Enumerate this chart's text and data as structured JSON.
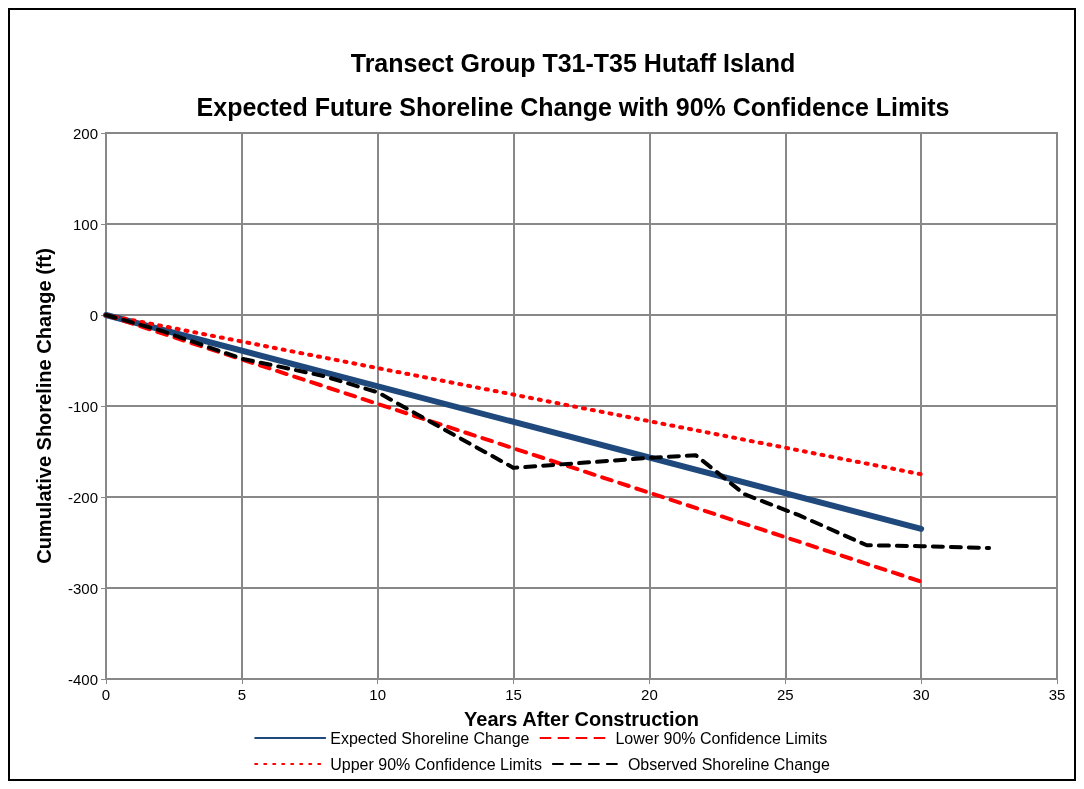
{
  "chart_data": {
    "type": "line",
    "title": "Transect Group T31-T35 Hutaff Island\nExpected Future Shoreline Change with 90% Confidence Limits",
    "xlabel": "Years After Construction",
    "ylabel": "Cumulative Shoreline Change (ft)",
    "xlim": [
      0,
      35
    ],
    "xticks": [
      0,
      5,
      10,
      15,
      20,
      25,
      30,
      35
    ],
    "ylim": [
      -400,
      200
    ],
    "yticks": [
      -400,
      -300,
      -200,
      -100,
      0,
      100,
      200
    ],
    "grid": true,
    "legend": "bottom",
    "marker": "none",
    "series": [
      {
        "name": "Expected Shoreline Change",
        "color": "#1f497d",
        "line_style": "solid",
        "x": [
          0,
          30
        ],
        "values": [
          0,
          -235
        ]
      },
      {
        "name": "Lower 90% Confidence Limits",
        "color": "#ff0000",
        "line_style": "dashed",
        "x": [
          0,
          30
        ],
        "values": [
          0,
          -293
        ]
      },
      {
        "name": "Upper 90% Confidence Limits",
        "color": "#ff0000",
        "line_style": "dotted",
        "x": [
          0,
          30
        ],
        "values": [
          0,
          -175
        ]
      },
      {
        "name": "Observed Shoreline Change",
        "color": "#000000",
        "line_style": "dashed",
        "x": [
          0,
          2,
          5,
          8,
          10,
          12.7,
          15,
          20,
          21.7,
          23.5,
          25.5,
          28,
          30,
          32.5
        ],
        "values": [
          0,
          -17,
          -48,
          -67,
          -85,
          -130,
          -168,
          -157,
          -154,
          -197,
          -220,
          -253,
          -254,
          -256
        ]
      }
    ]
  }
}
